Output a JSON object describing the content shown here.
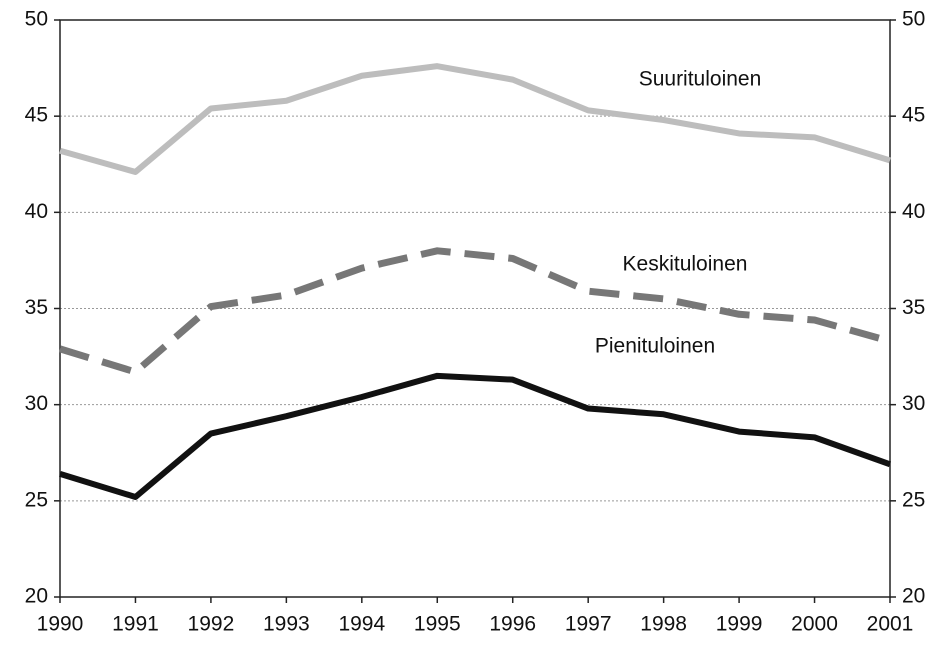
{
  "chart_data": {
    "type": "line",
    "x": [
      1990,
      1991,
      1992,
      1993,
      1994,
      1995,
      1996,
      1997,
      1998,
      1999,
      2000,
      2001
    ],
    "series": [
      {
        "name": "Suurituloinen",
        "color": "#bdbdbd",
        "dash": "solid",
        "values": [
          43.2,
          42.1,
          45.4,
          45.8,
          47.1,
          47.6,
          46.9,
          45.3,
          44.8,
          44.1,
          43.9,
          42.7
        ]
      },
      {
        "name": "Keskituloinen",
        "color": "#777777",
        "dash": "dashed",
        "values": [
          32.9,
          31.7,
          35.1,
          35.7,
          37.1,
          38.0,
          37.6,
          35.9,
          35.5,
          34.7,
          34.4,
          33.3
        ]
      },
      {
        "name": "Pienituloinen",
        "color": "#111111",
        "dash": "solid",
        "values": [
          26.4,
          25.2,
          28.5,
          29.4,
          30.4,
          31.5,
          31.3,
          29.8,
          29.5,
          28.6,
          28.3,
          26.9
        ]
      }
    ],
    "xlim": [
      1990,
      2001
    ],
    "xticks": [
      1990,
      1991,
      1992,
      1993,
      1994,
      1995,
      1996,
      1997,
      1998,
      1999,
      2000,
      2001
    ],
    "ylim": [
      20,
      50
    ],
    "yticks": [
      20,
      25,
      30,
      35,
      40,
      45,
      50
    ],
    "y2lim": [
      20,
      50
    ],
    "y2ticks": [
      20,
      25,
      30,
      35,
      40,
      45,
      50
    ],
    "grid": true
  }
}
